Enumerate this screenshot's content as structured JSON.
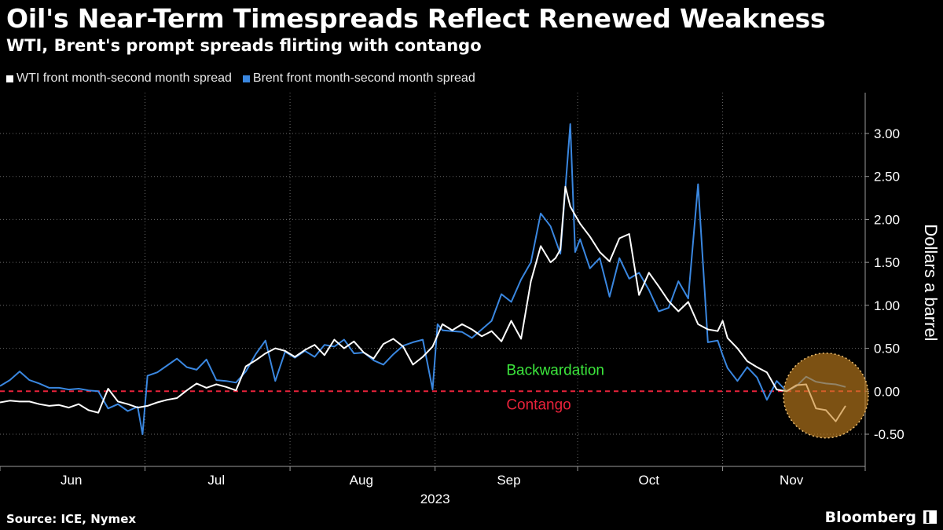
{
  "header": {
    "title": "Oil's Near-Term Timespreads Reflect Renewed Weakness",
    "subtitle": "WTI, Brent's prompt spreads flirting with contango"
  },
  "footer": {
    "source": "Source: ICE, Nymex",
    "brand": "Bloomberg",
    "brand_mark": "▍"
  },
  "colors": {
    "background": "#000000",
    "wti": "#ffffff",
    "brent": "#3a87e0",
    "zero_line": "#e8223a",
    "backwardation": "#3ce63c",
    "contango": "#e8223a",
    "highlight": "#c8821e"
  },
  "chart_data": {
    "type": "line",
    "title": "Oil's Near-Term Timespreads Reflect Renewed Weakness",
    "ylabel": "Dollars a barrel",
    "xlabel": "2023",
    "ylim": [
      -0.8,
      3.45
    ],
    "yticks": [
      -0.5,
      0,
      0.5,
      1.0,
      1.5,
      2.0,
      2.5,
      3.0
    ],
    "ytick_labels": [
      "-0.50",
      "0.00",
      "0.50",
      "1.00",
      "1.50",
      "2.00",
      "2.50",
      "3.00"
    ],
    "x_range_days": [
      0,
      176
    ],
    "month_labels": [
      {
        "label": "Jun",
        "day": 14.5
      },
      {
        "label": "Jul",
        "day": 44
      },
      {
        "label": "Aug",
        "day": 73.5
      },
      {
        "label": "Sep",
        "day": 103.5
      },
      {
        "label": "Oct",
        "day": 132
      },
      {
        "label": "Nov",
        "day": 161
      }
    ],
    "month_boundaries": [
      0,
      29.5,
      59,
      88.5,
      117.5,
      147,
      176
    ],
    "year_label": "2023",
    "annotations": [
      {
        "text": "Backwardation",
        "day": 103,
        "value": 0.19,
        "color_key": "backwardation"
      },
      {
        "text": "Contango",
        "day": 103,
        "value": -0.21,
        "color_key": "contango"
      }
    ],
    "highlight_circle": {
      "day": 168,
      "value": -0.05,
      "note": "recent contango dip"
    },
    "series": [
      {
        "name": "WTI front month-second month spread",
        "color_key": "wti",
        "x": [
          0,
          2,
          4,
          6,
          8,
          10,
          12,
          14,
          16,
          18,
          20,
          22,
          24,
          26,
          28,
          30,
          32,
          34,
          36,
          38,
          40,
          42,
          44,
          46,
          48,
          50,
          52,
          54,
          56,
          58,
          60,
          62,
          64,
          66,
          68,
          70,
          72,
          74,
          76,
          78,
          80,
          82,
          84,
          86,
          88,
          90,
          92,
          94,
          96,
          98,
          100,
          102,
          104,
          106,
          108,
          110,
          112,
          113,
          114,
          115,
          116,
          117,
          118,
          120,
          122,
          124,
          126,
          128,
          130,
          132,
          134,
          136,
          138,
          140,
          142,
          144,
          146,
          147,
          148,
          150,
          152,
          154,
          156,
          158,
          160,
          162,
          164,
          166,
          168,
          170,
          172
        ],
        "values": [
          -0.13,
          -0.11,
          -0.12,
          -0.12,
          -0.15,
          -0.17,
          -0.16,
          -0.19,
          -0.15,
          -0.22,
          -0.25,
          0.03,
          -0.12,
          -0.15,
          -0.19,
          -0.17,
          -0.13,
          -0.1,
          -0.08,
          0.01,
          0.09,
          0.04,
          0.08,
          0.05,
          0.01,
          0.29,
          0.36,
          0.44,
          0.5,
          0.47,
          0.4,
          0.48,
          0.54,
          0.42,
          0.6,
          0.5,
          0.58,
          0.45,
          0.38,
          0.55,
          0.61,
          0.52,
          0.31,
          0.4,
          0.52,
          0.78,
          0.71,
          0.78,
          0.72,
          0.64,
          0.7,
          0.58,
          0.82,
          0.61,
          1.28,
          1.69,
          1.5,
          1.55,
          1.65,
          2.38,
          2.15,
          2.05,
          1.95,
          1.8,
          1.62,
          1.51,
          1.78,
          1.83,
          1.12,
          1.38,
          1.22,
          1.05,
          0.93,
          1.04,
          0.78,
          0.72,
          0.7,
          0.82,
          0.62,
          0.5,
          0.35,
          0.28,
          0.22,
          0.02,
          0.0,
          0.07,
          0.08,
          -0.2,
          -0.22,
          -0.35,
          -0.17
        ]
      },
      {
        "name": "Brent front month-second month spread",
        "color_key": "brent",
        "x": [
          0,
          2,
          4,
          6,
          8,
          10,
          12,
          14,
          16,
          18,
          20,
          22,
          24,
          26,
          28,
          29,
          30,
          32,
          34,
          36,
          38,
          40,
          42,
          44,
          46,
          48,
          50,
          52,
          54,
          56,
          58,
          60,
          62,
          64,
          66,
          68,
          70,
          72,
          74,
          76,
          78,
          80,
          82,
          84,
          86,
          88,
          89,
          90,
          92,
          94,
          96,
          98,
          100,
          102,
          104,
          106,
          108,
          110,
          112,
          114,
          116,
          117,
          118,
          120,
          122,
          124,
          126,
          128,
          130,
          132,
          134,
          136,
          138,
          140,
          142,
          144,
          146,
          147,
          148,
          150,
          152,
          154,
          156,
          158,
          160,
          162,
          164,
          166,
          168,
          170,
          172
        ],
        "values": [
          0.06,
          0.13,
          0.23,
          0.13,
          0.09,
          0.04,
          0.04,
          0.02,
          0.03,
          0.01,
          0.0,
          -0.2,
          -0.15,
          -0.23,
          -0.18,
          -0.5,
          0.18,
          0.22,
          0.3,
          0.38,
          0.28,
          0.25,
          0.37,
          0.13,
          0.12,
          0.1,
          0.23,
          0.43,
          0.59,
          0.12,
          0.46,
          0.39,
          0.47,
          0.4,
          0.54,
          0.52,
          0.6,
          0.44,
          0.45,
          0.36,
          0.31,
          0.43,
          0.53,
          0.57,
          0.6,
          0.02,
          0.78,
          0.71,
          0.7,
          0.69,
          0.62,
          0.72,
          0.82,
          1.13,
          1.04,
          1.3,
          1.5,
          2.07,
          1.92,
          1.6,
          3.11,
          1.62,
          1.77,
          1.43,
          1.55,
          1.1,
          1.55,
          1.31,
          1.38,
          1.18,
          0.93,
          0.97,
          1.28,
          1.08,
          2.41,
          0.57,
          0.59,
          0.42,
          0.27,
          0.12,
          0.28,
          0.16,
          -0.1,
          0.12,
          0.0,
          0.06,
          0.17,
          0.11,
          0.09,
          0.08,
          0.05
        ]
      }
    ]
  }
}
